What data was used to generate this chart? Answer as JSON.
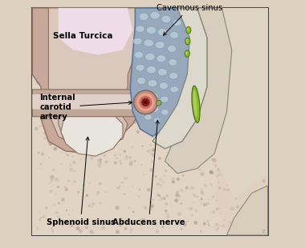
{
  "background_color": "#e8ddd0",
  "border_color": "#444444",
  "labels": {
    "cavernous_sinus": "Cavernous sinus",
    "sella_turcica": "Sella Turcica",
    "internal_carotid": "Internal\ncarotid\nartery",
    "sphenoid_sinus": "Sphenoid sinus",
    "abducens_nerve": "Abducens nerve"
  },
  "colors": {
    "outer_bg": "#ddd0be",
    "inner_bg": "#e8e0d0",
    "sella_outer": "#c8b0a0",
    "sella_mid": "#b89890",
    "sella_dark": "#907060",
    "sella_cavity": "#d8c8c0",
    "canal_fill": "#7a6050",
    "canal_light": "#c0a898",
    "cavernous_fill": "#9aabbc",
    "cavernous_border": "#6880a0",
    "cell_fill": "#b0c4d4",
    "cell_border": "#7898a8",
    "lateral_outer": "#d8cec0",
    "lateral_inner": "#e8e0d4",
    "wall_line": "#888878",
    "nerve_green": "#88bb30",
    "nerve_green_hi": "#aad050",
    "nerve_dark": "#507010",
    "artery_outer": "#b89088",
    "artery_pink": "#e0a898",
    "artery_red": "#c06858",
    "artery_dark": "#802020",
    "artery_center": "#501010",
    "ganglion": "#88a870",
    "sphenoid_dome": "#e8e4de",
    "stipple1": "#c0b0a0",
    "stipple2": "#b0a090",
    "right_bone": "#ddd4c4"
  }
}
